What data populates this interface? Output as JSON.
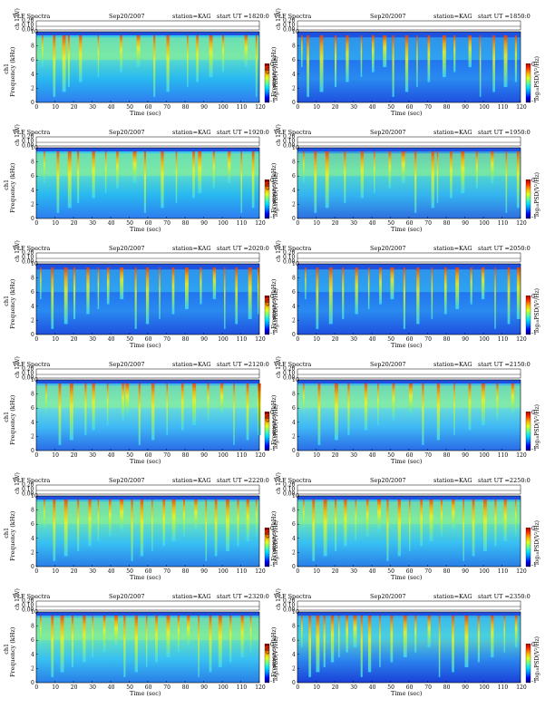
{
  "chart_data": {
    "type": "heatmap",
    "panels": [
      {
        "title": "VLF Spectra",
        "date": "Sep20/2007",
        "station": "station=KAG",
        "start": "start  UT  =1820:0",
        "rail_bg": "#f0a500",
        "pattern": "dense",
        "bursts": [
          3,
          9,
          14,
          17,
          23,
          33,
          45,
          54,
          63,
          70,
          81,
          86,
          93,
          100,
          112,
          118
        ]
      },
      {
        "title": "VLF Spectra",
        "date": "Sep20/2007",
        "station": "station=KAG",
        "start": "start  UT  =1850:0",
        "rail_bg": "#3a8eea",
        "pattern": "dark",
        "bursts": [
          2,
          5,
          12,
          20,
          26,
          34,
          40,
          46,
          51,
          58,
          64,
          70,
          78,
          84,
          92,
          98,
          105,
          111,
          117
        ]
      },
      {
        "title": "VLF Spectra",
        "date": "Sep20/2007",
        "station": "station=KAG",
        "start": "start  UT  =1920:0",
        "rail_bg": "#f0a500",
        "pattern": "dense",
        "bursts": [
          4,
          11,
          17,
          22,
          30,
          37,
          43,
          52,
          58,
          67,
          75,
          84,
          87,
          95,
          103,
          110,
          116
        ]
      },
      {
        "title": "VLF Spectra",
        "date": "Sep20/2007",
        "station": "station=KAG",
        "start": "start  UT  =1950:0",
        "rail_bg": "#3a8eea",
        "pattern": "mixed",
        "bursts": [
          3,
          9,
          15,
          25,
          34,
          41,
          49,
          56,
          63,
          72,
          75,
          82,
          88,
          96,
          104,
          112,
          118
        ]
      },
      {
        "title": "VLF Spectra",
        "date": "Sep20/2007",
        "station": "station=KAG",
        "start": "start  UT  =2020:0",
        "rail_bg": "#3a8eea",
        "pattern": "dark",
        "bursts": [
          2,
          8,
          15,
          20,
          27,
          33,
          38,
          45,
          53,
          59,
          66,
          73,
          80,
          88,
          95,
          101,
          107,
          114,
          119
        ]
      },
      {
        "title": "VLF Spectra",
        "date": "Sep20/2007",
        "station": "station=KAG",
        "start": "start  UT  =2050:0",
        "rail_bg": "#3a8eea",
        "pattern": "dark",
        "bursts": [
          4,
          10,
          17,
          24,
          31,
          38,
          44,
          50,
          57,
          64,
          72,
          79,
          85,
          93,
          99,
          106,
          113,
          118
        ]
      },
      {
        "title": "VLF Spectra",
        "date": "Sep20/2007",
        "station": "station=KAG",
        "start": "start  UT  =2120:0",
        "rail_bg": "#7ecbf5",
        "pattern": "light",
        "bursts": [
          5,
          12,
          18,
          26,
          30,
          38,
          46,
          48,
          55,
          62,
          70,
          78,
          84,
          92,
          99,
          106,
          113,
          119
        ]
      },
      {
        "title": "VLF Spectra",
        "date": "Sep20/2007",
        "station": "station=KAG",
        "start": "start  UT  =2150:0",
        "rail_bg": "#7ecbf5",
        "pattern": "light",
        "bursts": [
          3,
          11,
          20,
          27,
          36,
          43,
          51,
          60,
          67,
          75,
          84,
          92,
          99,
          107,
          115
        ]
      },
      {
        "title": "VLF Spectra",
        "date": "Sep20/2007",
        "station": "station=KAG",
        "start": "start  UT  =2220:0",
        "rail_bg": "#f0a500",
        "pattern": "band",
        "bursts": [
          4,
          9,
          15,
          22,
          28,
          33,
          39,
          45,
          51,
          56,
          62,
          68,
          73,
          79,
          85,
          91,
          96,
          102,
          108,
          113,
          118
        ]
      },
      {
        "title": "VLF Spectra",
        "date": "Sep20/2007",
        "station": "station=KAG",
        "start": "start  UT  =2250:0",
        "rail_bg": "#f0a500",
        "pattern": "band",
        "bursts": [
          3,
          8,
          14,
          20,
          25,
          31,
          37,
          43,
          48,
          54,
          60,
          66,
          71,
          77,
          83,
          89,
          94,
          100,
          106,
          111,
          117
        ]
      },
      {
        "title": "VLF Spectra",
        "date": "Sep20/2007",
        "station": "station=KAG",
        "start": "start  UT  =2320:0",
        "rail_bg": "#f0a500",
        "pattern": "band",
        "bursts": [
          2,
          8,
          13,
          19,
          25,
          30,
          36,
          42,
          47,
          53,
          59,
          64,
          70,
          76,
          81,
          87,
          93,
          98,
          104,
          110,
          115
        ]
      },
      {
        "title": "VLF Spectra",
        "date": "Sep20/2007",
        "station": "station=KAG",
        "start": "start  UT  =2350:0",
        "rail_bg": "#3a8eea",
        "pattern": "darkleft",
        "bursts": [
          2,
          6,
          10,
          14,
          18,
          22,
          26,
          30,
          34,
          38,
          44,
          50,
          57,
          63,
          70,
          76,
          83,
          90,
          97,
          104,
          111,
          117
        ]
      }
    ],
    "ch_label": "ch 1 (V)",
    "ch_ticks": [
      "0.00",
      "0.10",
      "0.20"
    ],
    "ylabel": "Frequency  (kHz)",
    "ylabel_prefix": "ch1",
    "y_ticks": [
      "0",
      "2",
      "4",
      "6",
      "8",
      "10"
    ],
    "ylim": [
      0,
      10
    ],
    "xlabel": "Time  (sec)",
    "x_ticks": [
      "0",
      "10",
      "20",
      "30",
      "40",
      "50",
      "60",
      "70",
      "80",
      "90",
      "100",
      "110",
      "120"
    ],
    "xlim": [
      0,
      120
    ],
    "colorbar_label": "log₁₀PSD(V²/Hz)",
    "colorbar_ticks": [
      "-1",
      "0"
    ],
    "colorscale": [
      "#00007f",
      "#0000ff",
      "#0080ff",
      "#00e0ff",
      "#60ff90",
      "#e0ff20",
      "#ffb000",
      "#ff3000",
      "#b00000"
    ]
  }
}
